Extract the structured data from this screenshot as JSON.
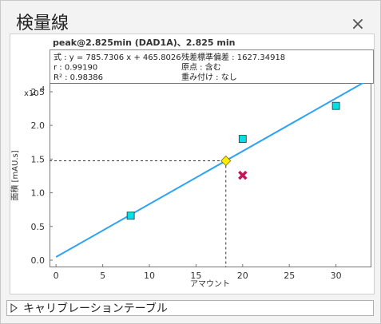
{
  "window": {
    "title": "検量線",
    "close": "×"
  },
  "section": {
    "label": "キャリブレーションテーブル"
  },
  "chart_data": {
    "type": "scatter",
    "title": "peak@2.825min (DAD1A)、2.825 min",
    "annotations": [
      "式 : y = 785.7306 x + 465.8026",
      "r : 0.99190",
      "R² : 0.98386",
      "残差標準偏差 : 1627.34918",
      "原点 : 含む",
      "重み付け : なし"
    ],
    "xlabel": "アマウント",
    "ylabel": "面積 [mAU.s]",
    "y_multiplier": "x10",
    "y_multiplier_exponent": "4",
    "xlim": [
      -0.7,
      33.8
    ],
    "ylim": [
      -0.107,
      2.63
    ],
    "xticks": [
      0,
      5,
      10,
      15,
      20,
      25,
      30
    ],
    "yticks": [
      {
        "value": 0,
        "label": "0.0"
      },
      0.5,
      {
        "value": 1,
        "label": "1.0"
      },
      1.5,
      {
        "value": 2,
        "label": "2.0"
      },
      2.5
    ],
    "grid": false,
    "series": [
      {
        "type": "line",
        "color": "#2ea3f2",
        "x": [
          0,
          33
        ],
        "values": [
          0.0466,
          2.639
        ]
      },
      {
        "marker": "square",
        "color": "#00e0e6",
        "x": [
          8,
          20,
          30
        ],
        "values": [
          0.66,
          1.8,
          2.29
        ]
      },
      {
        "marker": "x",
        "color": "#c2185b",
        "x": [
          20
        ],
        "values": [
          1.26
        ]
      },
      {
        "marker": "diamond",
        "color": "#ffee00",
        "guides": true,
        "x": [
          18.2
        ],
        "values": [
          1.475
        ]
      }
    ]
  }
}
